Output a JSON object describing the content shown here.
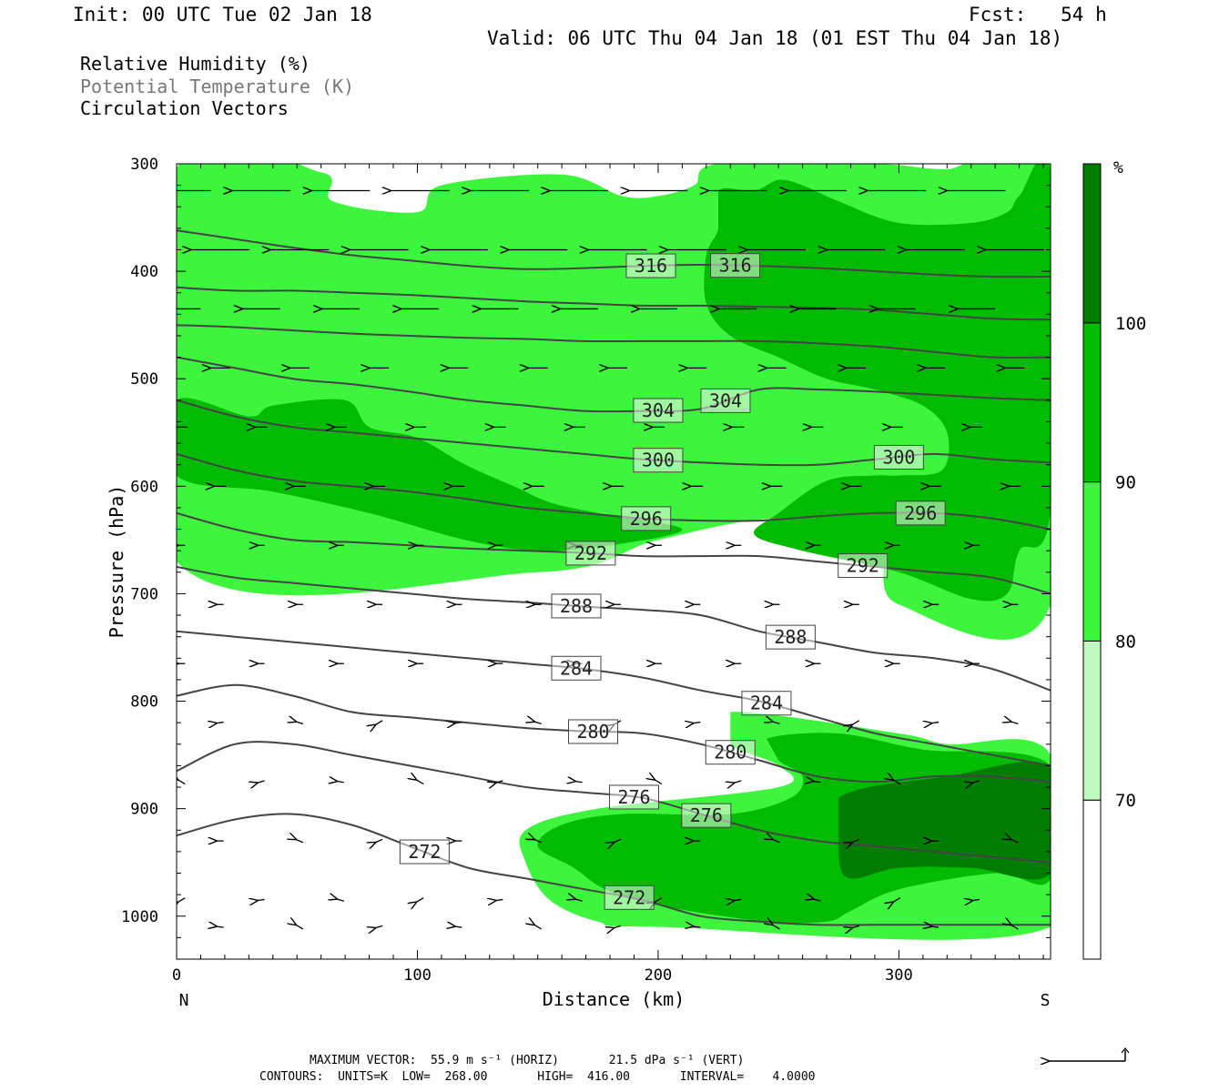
{
  "header": {
    "init": "Init: 00 UTC Tue 02 Jan 18",
    "fcst": "Fcst:   54 h",
    "valid": "Valid: 06 UTC Thu 04 Jan 18 (01 EST Thu 04 Jan 18)"
  },
  "legend": {
    "rh": "Relative Humidity (%)",
    "theta": "Potential Temperature (K)",
    "vectors": "Circulation Vectors"
  },
  "footer": {
    "max_vector": "MAXIMUM VECTOR:  55.9 m s⁻¹ (HORIZ)       21.5 dPa s⁻¹ (VERT)",
    "contours": "CONTOURS:  UNITS=K  LOW=  268.00       HIGH=  416.00       INTERVAL=    4.0000"
  },
  "chart_data": {
    "type": "contour-cross-section",
    "xlabel": "Distance (km)",
    "ylabel": "Pressure (hPa)",
    "xlim": [
      0,
      363
    ],
    "ylim": [
      300,
      1040
    ],
    "x_ticks": [
      0,
      100,
      200,
      300
    ],
    "y_ticks": [
      300,
      400,
      500,
      600,
      700,
      800,
      900,
      1000
    ],
    "x_end_labels": [
      "N",
      "S"
    ],
    "colorbar": {
      "unit": "%",
      "levels": [
        70,
        80,
        90,
        100
      ],
      "colors": [
        "#ffffff",
        "#c0fac0",
        "#3ef53e",
        "#00bb00",
        "#007d00"
      ]
    },
    "rh_regions": [
      {
        "level": 80,
        "pts": [
          [
            0,
            305
          ],
          [
            60,
            308
          ],
          [
            65,
            335
          ],
          [
            100,
            345
          ],
          [
            110,
            320
          ],
          [
            160,
            310
          ],
          [
            185,
            330
          ],
          [
            200,
            330
          ],
          [
            215,
            320
          ],
          [
            225,
            300
          ],
          [
            290,
            300
          ],
          [
            320,
            305
          ],
          [
            363,
            300
          ],
          [
            363,
            710
          ],
          [
            300,
            710
          ],
          [
            290,
            650
          ],
          [
            250,
            630
          ],
          [
            200,
            650
          ],
          [
            150,
            680
          ],
          [
            0,
            670
          ]
        ]
      },
      {
        "level": 80,
        "pts": [
          [
            230,
            810
          ],
          [
            300,
            830
          ],
          [
            320,
            840
          ],
          [
            363,
            850
          ],
          [
            363,
            1010
          ],
          [
            200,
            1010
          ],
          [
            175,
            1005
          ],
          [
            155,
            985
          ],
          [
            145,
            950
          ],
          [
            145,
            920
          ],
          [
            175,
            900
          ],
          [
            250,
            880
          ],
          [
            250,
            860
          ],
          [
            230,
            840
          ]
        ]
      },
      {
        "level": 90,
        "pts": [
          [
            0,
            520
          ],
          [
            30,
            535
          ],
          [
            40,
            525
          ],
          [
            70,
            520
          ],
          [
            80,
            545
          ],
          [
            100,
            555
          ],
          [
            120,
            580
          ],
          [
            140,
            600
          ],
          [
            155,
            615
          ],
          [
            175,
            625
          ],
          [
            210,
            640
          ],
          [
            180,
            655
          ],
          [
            150,
            660
          ],
          [
            120,
            650
          ],
          [
            80,
            625
          ],
          [
            40,
            605
          ],
          [
            0,
            590
          ]
        ]
      },
      {
        "level": 90,
        "pts": [
          [
            225,
            325
          ],
          [
            240,
            325
          ],
          [
            250,
            315
          ],
          [
            260,
            320
          ],
          [
            275,
            335
          ],
          [
            300,
            355
          ],
          [
            330,
            355
          ],
          [
            345,
            345
          ],
          [
            350,
            330
          ],
          [
            363,
            310
          ],
          [
            363,
            620
          ],
          [
            350,
            660
          ],
          [
            345,
            700
          ],
          [
            330,
            705
          ],
          [
            300,
            680
          ],
          [
            260,
            660
          ],
          [
            240,
            645
          ],
          [
            250,
            625
          ],
          [
            270,
            595
          ],
          [
            290,
            590
          ],
          [
            300,
            590
          ],
          [
            318,
            585
          ],
          [
            320,
            550
          ],
          [
            310,
            525
          ],
          [
            290,
            510
          ],
          [
            270,
            500
          ],
          [
            250,
            480
          ],
          [
            230,
            460
          ],
          [
            220,
            430
          ],
          [
            220,
            385
          ],
          [
            225,
            360
          ]
        ]
      },
      {
        "level": 90,
        "pts": [
          [
            245,
            835
          ],
          [
            275,
            830
          ],
          [
            310,
            845
          ],
          [
            363,
            860
          ],
          [
            363,
            965
          ],
          [
            340,
            960
          ],
          [
            300,
            975
          ],
          [
            280,
            995
          ],
          [
            270,
            1005
          ],
          [
            245,
            1005
          ],
          [
            200,
            990
          ],
          [
            178,
            975
          ],
          [
            165,
            955
          ],
          [
            150,
            935
          ],
          [
            160,
            915
          ],
          [
            185,
            905
          ],
          [
            230,
            905
          ],
          [
            255,
            890
          ],
          [
            260,
            870
          ],
          [
            250,
            855
          ]
        ]
      },
      {
        "level": 100,
        "pts": [
          [
            275,
            890
          ],
          [
            320,
            870
          ],
          [
            363,
            862
          ],
          [
            363,
            960
          ],
          [
            330,
            955
          ],
          [
            300,
            955
          ],
          [
            280,
            965
          ],
          [
            275,
            945
          ]
        ]
      }
    ],
    "theta_contours": [
      {
        "label": "316",
        "y": [
          362,
          370,
          378,
          385,
          390,
          395,
          398,
          397,
          395,
          394,
          395,
          397,
          400,
          403,
          405,
          405
        ],
        "labels_at": [
          197,
          232
        ]
      },
      {
        "label": "",
        "y": [
          415,
          418,
          418,
          420,
          422,
          425,
          428,
          430,
          432,
          432,
          433,
          434,
          436,
          440,
          444,
          445
        ]
      },
      {
        "label": "",
        "y": [
          450,
          452,
          455,
          458,
          460,
          462,
          463,
          465,
          465,
          465,
          465,
          467,
          470,
          475,
          480,
          480
        ]
      },
      {
        "label": "304",
        "y": [
          480,
          490,
          500,
          505,
          512,
          520,
          525,
          530,
          530,
          528,
          510,
          510,
          512,
          515,
          518,
          520
        ],
        "labels_at": [
          200,
          228
        ]
      },
      {
        "label": "300",
        "y": [
          520,
          535,
          545,
          550,
          555,
          560,
          565,
          570,
          575,
          578,
          580,
          580,
          575,
          570,
          575,
          578
        ],
        "labels_at": [
          200,
          300
        ]
      },
      {
        "label": "296",
        "y": [
          570,
          585,
          595,
          600,
          605,
          612,
          620,
          625,
          630,
          632,
          632,
          628,
          625,
          625,
          630,
          640
        ],
        "labels_at": [
          195,
          309
        ]
      },
      {
        "label": "292",
        "y": [
          625,
          640,
          650,
          652,
          655,
          658,
          660,
          662,
          665,
          665,
          665,
          670,
          675,
          680,
          685,
          700
        ],
        "labels_at": [
          172,
          285
        ]
      },
      {
        "label": "288",
        "y": [
          675,
          685,
          690,
          695,
          700,
          705,
          708,
          712,
          715,
          720,
          735,
          745,
          755,
          760,
          770,
          790
        ],
        "labels_at": [
          166,
          255
        ]
      },
      {
        "label": "284",
        "y": [
          735,
          740,
          745,
          750,
          755,
          760,
          765,
          770,
          778,
          790,
          800,
          815,
          830,
          840,
          850,
          860
        ],
        "labels_at": [
          166,
          245
        ]
      },
      {
        "label": "280",
        "y": [
          795,
          785,
          795,
          810,
          815,
          820,
          825,
          828,
          830,
          840,
          855,
          870,
          875,
          870,
          870,
          875
        ],
        "labels_at": [
          173,
          230
        ]
      },
      {
        "label": "276",
        "y": [
          865,
          840,
          840,
          850,
          860,
          870,
          880,
          885,
          890,
          905,
          920,
          930,
          935,
          940,
          945,
          950
        ],
        "labels_at": [
          190,
          220
        ]
      },
      {
        "label": "272",
        "y": [
          925,
          910,
          905,
          915,
          935,
          955,
          965,
          975,
          985,
          1000,
          1005,
          1008,
          1008,
          1008,
          1008,
          1008
        ],
        "labels_at": [
          103,
          188
        ]
      }
    ]
  }
}
